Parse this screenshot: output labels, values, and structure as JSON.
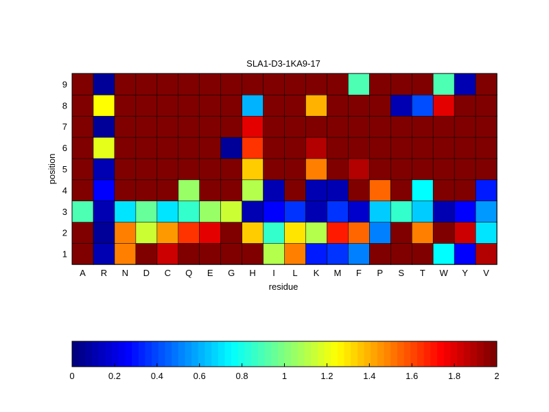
{
  "chart_data": [
    {
      "type": "heatmap",
      "title": "SLA1-D3-1KA9-17",
      "xlabel": "residue",
      "ylabel": "position",
      "x_categories": [
        "A",
        "R",
        "N",
        "D",
        "C",
        "Q",
        "E",
        "G",
        "H",
        "I",
        "L",
        "K",
        "M",
        "F",
        "P",
        "S",
        "T",
        "W",
        "Y",
        "V"
      ],
      "y_categories": [
        "1",
        "2",
        "3",
        "4",
        "5",
        "6",
        "7",
        "8",
        "9"
      ],
      "value_range": [
        0,
        2
      ],
      "colormap": "jet",
      "grid": false,
      "values": [
        [
          2.0,
          0.1,
          1.5,
          2.0,
          1.85,
          2.0,
          2.0,
          2.0,
          2.0,
          1.1,
          1.5,
          0.3,
          0.35,
          0.5,
          2.0,
          2.0,
          2.0,
          0.75,
          0.25,
          1.9
        ],
        [
          2.0,
          0.05,
          1.5,
          1.15,
          1.45,
          1.65,
          1.8,
          2.0,
          1.35,
          0.85,
          1.3,
          1.1,
          1.7,
          1.55,
          0.5,
          2.0,
          1.5,
          2.0,
          1.85,
          0.7
        ],
        [
          0.9,
          0.1,
          0.7,
          0.95,
          0.7,
          0.85,
          1.05,
          1.15,
          0.1,
          0.25,
          0.35,
          0.1,
          0.35,
          0.15,
          0.65,
          0.85,
          0.65,
          0.1,
          0.25,
          0.55
        ],
        [
          2.0,
          0.25,
          2.0,
          2.0,
          2.0,
          1.05,
          2.0,
          2.0,
          1.1,
          0.1,
          2.0,
          0.1,
          0.1,
          2.0,
          1.55,
          2.0,
          0.75,
          2.0,
          2.0,
          0.3
        ],
        [
          2.0,
          0.1,
          2.0,
          2.0,
          2.0,
          2.0,
          2.0,
          2.0,
          1.35,
          2.0,
          2.0,
          1.5,
          2.0,
          1.9,
          2.0,
          2.0,
          2.0,
          2.0,
          2.0,
          2.0
        ],
        [
          2.0,
          1.2,
          2.0,
          2.0,
          2.0,
          2.0,
          2.0,
          0.05,
          1.65,
          2.0,
          2.0,
          1.9,
          2.0,
          2.0,
          2.0,
          2.0,
          2.0,
          2.0,
          2.0,
          2.0
        ],
        [
          2.0,
          0.05,
          2.0,
          2.0,
          2.0,
          2.0,
          2.0,
          2.0,
          1.8,
          2.0,
          2.0,
          2.0,
          2.0,
          2.0,
          2.0,
          2.0,
          2.0,
          2.0,
          2.0,
          2.0
        ],
        [
          2.0,
          1.25,
          2.0,
          2.0,
          2.0,
          2.0,
          2.0,
          2.0,
          0.6,
          2.0,
          2.0,
          1.4,
          2.0,
          2.0,
          2.0,
          0.1,
          0.4,
          1.8,
          2.0,
          2.0
        ],
        [
          2.0,
          0.05,
          2.0,
          2.0,
          2.0,
          2.0,
          2.0,
          2.0,
          2.0,
          2.0,
          2.0,
          2.0,
          2.0,
          0.9,
          2.0,
          2.0,
          2.0,
          0.9,
          0.1,
          2.0
        ]
      ]
    },
    {
      "type": "colorbar",
      "colormap": "jet",
      "range": [
        0,
        2
      ],
      "tick_values": [
        0,
        0.2,
        0.4,
        0.6,
        0.8,
        1,
        1.2,
        1.4,
        1.6,
        1.8,
        2
      ],
      "tick_labels": [
        "0",
        "0.2",
        "0.4",
        "0.6",
        "0.8",
        "1",
        "1.2",
        "1.4",
        "1.6",
        "1.8",
        "2"
      ],
      "levels": 64
    }
  ]
}
